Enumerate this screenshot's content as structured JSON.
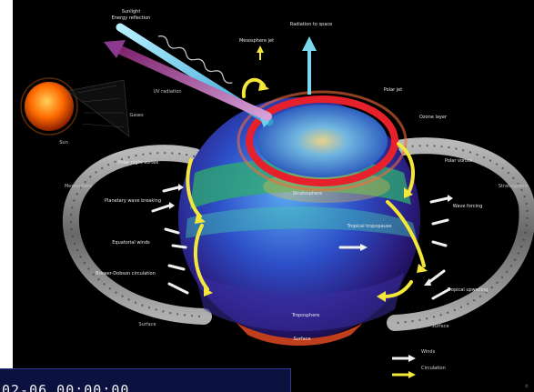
{
  "labels": {
    "solar": "Sunlight",
    "solar_top": "Energy reflection",
    "solar_uv": "UV radiation",
    "north_space": "Radiation to space",
    "ozone_top": "Mesosphere jet",
    "jet_north": "Polar jet",
    "ozone_upper": "Ozone layer",
    "left_upper": "Polar night vortex",
    "left_mid": "Planetary wave breaking",
    "left_winds": "Equatorial winds",
    "left_low": "Brewer-Dobson circulation",
    "right_upper": "Polar vortex",
    "right_mid": "Wave forcing",
    "right_low": "Tropical upwelling",
    "center_band": "Stratosphere",
    "center_mid": "Tropical tropopause",
    "center_low": "Troposphere",
    "surface": "Surface",
    "ring_left_top": "Mesosphere",
    "ring_left_bottom": "Surface",
    "ring_right_top": "Stratosphere",
    "ring_right_bottom": "Surface",
    "sun_label": "Sun",
    "gas_label": "Gases"
  },
  "legend": {
    "white_label": "Winds",
    "yellow_label": "Circulation"
  },
  "colors": {
    "background": "#000000",
    "sun": "#ff6a00",
    "ozone_ring": "#e6212b",
    "yellow_arrow": "#f5e63a",
    "white_arrow": "#f0f0f0",
    "cyan_arrow": "#7ad7ec",
    "purple_arrow": "#8b3a8f"
  },
  "timestamp": "02-06 00:00:00",
  "credit": "©"
}
